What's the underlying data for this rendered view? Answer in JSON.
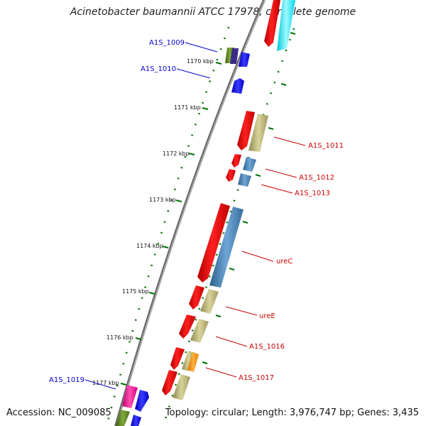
{
  "title": "Acinetobacter baumannii ATCC 17978, complete genome",
  "footer": {
    "accession": "Accession: NC_009085",
    "summary": "Topology: circular; Length: 3,976,747 bp; Genes: 3,435"
  },
  "ticks": [
    "1170 kbp",
    "1171 kbp",
    "1172 kbp",
    "1173 kbp",
    "1174 kbp",
    "1175 kbp",
    "1176 kbp",
    "1177 kbp"
  ],
  "gene_labels_forward": [
    "A1S_1009",
    "A1S_1010",
    "A1S_1019"
  ],
  "gene_labels_reverse": [
    "A1S_1011",
    "A1S_1012",
    "A1S_1013",
    "ureC",
    "ureE",
    "A1S_1016",
    "A1S_1017"
  ],
  "colors": {
    "forward_label": "#0000cc",
    "reverse_label": "#cc0000",
    "cds": "#ff0000",
    "gene_olive": "#bdb76b",
    "gene_steel": "#4682b4",
    "forward_gene": "#0000ff",
    "tick_green": "#006400",
    "backbone": "#888888"
  }
}
